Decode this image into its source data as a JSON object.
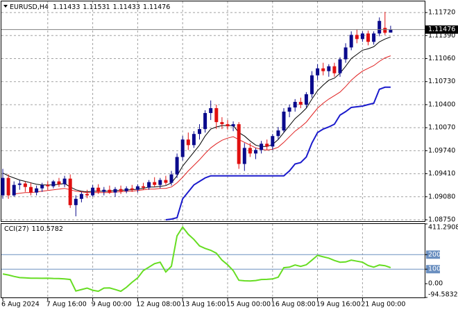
{
  "chart_data": [
    {
      "type": "candlestick",
      "symbol": "EURUSD,H4",
      "open": 1.11433,
      "high": 1.11531,
      "low": 1.11433,
      "close": 1.11476,
      "last_price": {
        "value": 1.11476,
        "label": "1.11476"
      },
      "up_color": "#0a0a8c",
      "down_color": "#e01010",
      "grid": true,
      "categories": [
        "6 Aug 2024",
        null,
        null,
        null,
        null,
        null,
        null,
        null,
        "7 Aug 16:00",
        null,
        null,
        null,
        null,
        null,
        null,
        null,
        "9 Aug 00:00",
        null,
        null,
        null,
        null,
        null,
        null,
        null,
        "12 Aug 08:00",
        null,
        null,
        null,
        null,
        null,
        null,
        null,
        "13 Aug 16:00",
        null,
        null,
        null,
        null,
        null,
        null,
        null,
        "15 Aug 00:00",
        null,
        null,
        null,
        null,
        null,
        null,
        null,
        "16 Aug 08:00",
        null,
        null,
        null,
        null,
        null,
        null,
        null,
        "19 Aug 16:00",
        null,
        null,
        null,
        null,
        null,
        null,
        null,
        "21 Aug 00:00",
        null,
        null,
        null,
        null,
        null
      ],
      "ohlc": [
        [
          1.091,
          1.0948,
          1.0905,
          1.0935
        ],
        [
          1.0935,
          1.094,
          1.0905,
          1.091
        ],
        [
          1.091,
          1.093,
          1.0908,
          1.0925
        ],
        [
          1.0925,
          1.0932,
          1.0918,
          1.0927
        ],
        [
          1.0927,
          1.093,
          1.0915,
          1.0922
        ],
        [
          1.0922,
          1.0928,
          1.091,
          1.0914
        ],
        [
          1.0914,
          1.0924,
          1.091,
          1.092
        ],
        [
          1.092,
          1.0928,
          1.0915,
          1.0925
        ],
        [
          1.0925,
          1.093,
          1.0918,
          1.0923
        ],
        [
          1.0923,
          1.0932,
          1.092,
          1.093
        ],
        [
          1.093,
          1.0935,
          1.0922,
          1.0926
        ],
        [
          1.0926,
          1.0938,
          1.0922,
          1.0934
        ],
        [
          1.0934,
          1.094,
          1.0892,
          1.0896
        ],
        [
          1.0896,
          1.091,
          1.088,
          1.0905
        ],
        [
          1.0905,
          1.0915,
          1.09,
          1.0912
        ],
        [
          1.0912,
          1.0918,
          1.0906,
          1.091
        ],
        [
          1.091,
          1.0925,
          1.0908,
          1.0921
        ],
        [
          1.0921,
          1.0926,
          1.0912,
          1.0915
        ],
        [
          1.0915,
          1.0922,
          1.091,
          1.0918
        ],
        [
          1.0918,
          1.0924,
          1.0912,
          1.0914
        ],
        [
          1.0914,
          1.0922,
          1.0908,
          1.0919
        ],
        [
          1.0919,
          1.0924,
          1.0912,
          1.0916
        ],
        [
          1.0916,
          1.0923,
          1.0913,
          1.092
        ],
        [
          1.092,
          1.0925,
          1.0915,
          1.0918
        ],
        [
          1.0918,
          1.0926,
          1.0914,
          1.0923
        ],
        [
          1.0923,
          1.0928,
          1.0918,
          1.0921
        ],
        [
          1.0921,
          1.0932,
          1.0918,
          1.0929
        ],
        [
          1.0929,
          1.0936,
          1.0922,
          1.0925
        ],
        [
          1.0925,
          1.0935,
          1.092,
          1.0932
        ],
        [
          1.0932,
          1.0938,
          1.0925,
          1.0928
        ],
        [
          1.0928,
          1.0945,
          1.0924,
          1.094
        ],
        [
          1.094,
          1.097,
          1.0935,
          1.0965
        ],
        [
          1.0965,
          1.0995,
          1.096,
          1.099
        ],
        [
          1.099,
          1.1,
          1.0975,
          1.0982
        ],
        [
          1.0982,
          1.1002,
          1.0978,
          1.0998
        ],
        [
          1.0998,
          1.1012,
          1.099,
          1.1005
        ],
        [
          1.1005,
          1.1032,
          1.1,
          1.1028
        ],
        [
          1.1028,
          1.1046,
          1.1018,
          1.1035
        ],
        [
          1.1035,
          1.104,
          1.1005,
          1.1015
        ],
        [
          1.1015,
          1.1022,
          1.1005,
          1.1012
        ],
        [
          1.1012,
          1.1018,
          1.1004,
          1.1009
        ],
        [
          1.1009,
          1.1016,
          1.1002,
          1.1012
        ],
        [
          1.1012,
          1.1015,
          1.0948,
          1.0955
        ],
        [
          1.0955,
          1.0985,
          1.0945,
          1.0978
        ],
        [
          1.0978,
          1.0985,
          1.0965,
          1.097
        ],
        [
          1.097,
          1.0978,
          1.0962,
          1.0975
        ],
        [
          1.0975,
          1.0988,
          1.097,
          1.0984
        ],
        [
          1.0984,
          1.099,
          1.0975,
          1.098
        ],
        [
          1.098,
          1.0998,
          1.0975,
          1.0995
        ],
        [
          1.0995,
          1.1008,
          1.099,
          1.1003
        ],
        [
          1.1003,
          1.1035,
          1.1,
          1.103
        ],
        [
          1.103,
          1.104,
          1.1022,
          1.1036
        ],
        [
          1.1036,
          1.1048,
          1.103,
          1.1044
        ],
        [
          1.1044,
          1.105,
          1.1035,
          1.104
        ],
        [
          1.104,
          1.1058,
          1.1036,
          1.1055
        ],
        [
          1.1055,
          1.1088,
          1.105,
          1.1082
        ],
        [
          1.1082,
          1.1098,
          1.1075,
          1.1092
        ],
        [
          1.1092,
          1.11,
          1.1082,
          1.1088
        ],
        [
          1.1088,
          1.1098,
          1.108,
          1.1095
        ],
        [
          1.1095,
          1.11,
          1.108,
          1.1085
        ],
        [
          1.1085,
          1.1108,
          1.108,
          1.1105
        ],
        [
          1.1105,
          1.1128,
          1.11,
          1.1122
        ],
        [
          1.1122,
          1.1145,
          1.1118,
          1.114
        ],
        [
          1.114,
          1.1148,
          1.1128,
          1.1134
        ],
        [
          1.1134,
          1.1145,
          1.113,
          1.1142
        ],
        [
          1.1142,
          1.1146,
          1.1125,
          1.113
        ],
        [
          1.113,
          1.1145,
          1.1126,
          1.1142
        ],
        [
          1.1142,
          1.1165,
          1.1138,
          1.116
        ],
        [
          1.115,
          1.1173,
          1.114,
          1.1143
        ],
        [
          1.11433,
          1.11531,
          1.11433,
          1.11476
        ]
      ],
      "series": [
        {
          "color": "#000000",
          "width": 1,
          "values": [
            1.0942,
            1.0938,
            1.0935,
            1.0932,
            1.093,
            1.0928,
            1.0926,
            1.0925,
            1.0925,
            1.0925,
            1.0926,
            1.0927,
            1.0922,
            1.0918,
            1.0916,
            1.0915,
            1.0916,
            1.0916,
            1.0916,
            1.0916,
            1.0917,
            1.0917,
            1.0918,
            1.0918,
            1.0919,
            1.092,
            1.0922,
            1.0922,
            1.0923,
            1.0924,
            1.0928,
            1.0938,
            1.0952,
            1.0962,
            1.0972,
            1.0982,
            1.0995,
            1.1005,
            1.1008,
            1.101,
            1.101,
            1.101,
            1.1,
            1.0995,
            1.0988,
            1.0982,
            1.098,
            1.098,
            1.0983,
            1.099,
            1.1,
            1.101,
            1.102,
            1.1027,
            1.1035,
            1.1048,
            1.106,
            1.1068,
            1.1075,
            1.1078,
            1.1085,
            1.1095,
            1.1106,
            1.1112,
            1.1118,
            1.112,
            1.1123,
            1.113,
            1.1134,
            1.1137
          ]
        },
        {
          "color": "#e02020",
          "width": 1,
          "values": [
            null,
            null,
            1.0912,
            1.0913,
            1.0914,
            1.0914,
            1.0915,
            1.0916,
            1.0917,
            1.0918,
            1.0919,
            1.092,
            1.0918,
            1.0916,
            1.0915,
            1.0914,
            1.0914,
            1.0914,
            1.0914,
            1.0914,
            1.0915,
            1.0915,
            1.0916,
            1.0916,
            1.0917,
            1.0918,
            1.0919,
            1.0919,
            1.092,
            1.092,
            1.0922,
            1.0928,
            1.0936,
            1.0945,
            1.0953,
            1.0961,
            1.097,
            1.0978,
            1.0984,
            1.0989,
            1.0992,
            1.0994,
            1.099,
            1.0986,
            1.0982,
            1.0978,
            1.0976,
            1.0975,
            1.0976,
            1.0979,
            1.0986,
            1.0994,
            1.1002,
            1.1008,
            1.1015,
            1.1025,
            1.1035,
            1.1042,
            1.1048,
            1.1053,
            1.1058,
            1.1066,
            1.1075,
            1.1082,
            1.1088,
            1.1092,
            1.1096,
            1.1102,
            1.1107,
            1.111
          ]
        },
        {
          "color": "#1a1acc",
          "width": 2,
          "values": [
            null,
            null,
            null,
            null,
            null,
            null,
            null,
            null,
            null,
            null,
            null,
            null,
            null,
            null,
            null,
            null,
            null,
            null,
            null,
            null,
            null,
            null,
            null,
            null,
            null,
            null,
            null,
            null,
            null,
            1.0875,
            1.0876,
            1.0878,
            1.0905,
            1.0915,
            1.0925,
            1.093,
            1.0935,
            1.0938,
            1.0938,
            1.0938,
            1.0938,
            1.0938,
            1.0938,
            1.0938,
            1.0938,
            1.0938,
            1.0938,
            1.0938,
            1.0938,
            1.0938,
            1.0938,
            1.0945,
            1.0955,
            1.0957,
            1.0965,
            1.0985,
            1.1,
            1.1005,
            1.1008,
            1.1012,
            1.1025,
            1.103,
            1.1036,
            1.1037,
            1.1038,
            1.104,
            1.1042,
            1.1062,
            1.1065,
            1.1065
          ]
        }
      ],
      "ylim": [
        1.0874,
        1.1188
      ],
      "yticks": [
        {
          "value": 1.1172,
          "label": "1.11720"
        },
        {
          "value": 1.1139,
          "label": "1.11390"
        },
        {
          "value": 1.1106,
          "label": "1.11060"
        },
        {
          "value": 1.1073,
          "label": "1.10730"
        },
        {
          "value": 1.104,
          "label": "1.10400"
        },
        {
          "value": 1.1007,
          "label": "1.10070"
        },
        {
          "value": 1.0974,
          "label": "1.09740"
        },
        {
          "value": 1.0941,
          "label": "1.09410"
        },
        {
          "value": 1.0908,
          "label": "1.09080"
        },
        {
          "value": 1.0875,
          "label": "1.08750"
        }
      ]
    },
    {
      "type": "line",
      "indicator": "CCI(27)",
      "current_value": 110.5782,
      "color": "#66dd22",
      "levels": [
        200,
        100
      ],
      "level_color": "#6a8fc0",
      "values": [
        67,
        60,
        50,
        42,
        40,
        38,
        38,
        37,
        38,
        36,
        35,
        33,
        29,
        -50,
        -40,
        -30,
        -45,
        -52,
        -30,
        -29,
        -40,
        -52,
        -25,
        10,
        40,
        90,
        114,
        138,
        148,
        81,
        120,
        329,
        390,
        340,
        305,
        260,
        243,
        230,
        210,
        162,
        130,
        90,
        24,
        20,
        19,
        22,
        29,
        30,
        33,
        45,
        110,
        114,
        129,
        119,
        130,
        162,
        195,
        185,
        176,
        160,
        148,
        150,
        162,
        155,
        148,
        125,
        114,
        129,
        124,
        110.5782
      ],
      "ylim": [
        -94.5832,
        411.2908
      ],
      "yticks": [
        411.2908,
        200,
        100,
        {
          "value": 0,
          "label": "0.00"
        },
        -94.5832
      ]
    }
  ]
}
